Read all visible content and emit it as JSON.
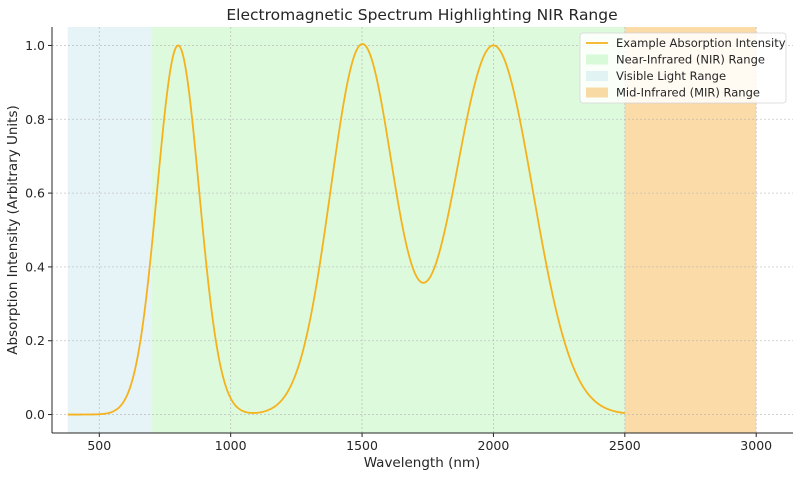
{
  "chart_data": {
    "type": "line",
    "title": "Electromagnetic Spectrum Highlighting NIR Range",
    "xlabel": "Wavelength (nm)",
    "ylabel": "Absorption Intensity (Arbitrary Units)",
    "xlim": [
      320,
      3140
    ],
    "ylim": [
      -0.05,
      1.05
    ],
    "x_ticks": [
      500,
      1000,
      1500,
      2000,
      2500,
      3000
    ],
    "y_ticks": [
      0.0,
      0.2,
      0.4,
      0.6,
      0.8,
      1.0
    ],
    "y_tick_labels": [
      "0.0",
      "0.2",
      "0.4",
      "0.6",
      "0.8",
      "1.0"
    ],
    "grid": true,
    "legend_position": "top-right",
    "series": [
      {
        "name": "Example Absorption Intensity",
        "color": "#f5b21c",
        "x_range": [
          380,
          2500
        ],
        "peaks": [
          {
            "center": 800,
            "sigma": 80,
            "amplitude": 1.0
          },
          {
            "center": 1500,
            "sigma": 120,
            "amplitude": 1.0
          },
          {
            "center": 2000,
            "sigma": 150,
            "amplitude": 1.0
          }
        ]
      }
    ],
    "regions": [
      {
        "name": "Near-Infrared (NIR) Range",
        "range": [
          700,
          2500
        ],
        "color": "#90ee90",
        "opacity": 0.3
      },
      {
        "name": "Visible Light Range",
        "range": [
          380,
          700
        ],
        "color": "#add8e6",
        "opacity": 0.3
      },
      {
        "name": "Mid-Infrared (MIR) Range",
        "range": [
          2500,
          3000
        ],
        "color": "#f5a623",
        "opacity": 0.4
      }
    ],
    "legend_order": [
      "Example Absorption Intensity",
      "Near-Infrared (NIR) Range",
      "Visible Light Range",
      "Mid-Infrared (MIR) Range"
    ]
  }
}
